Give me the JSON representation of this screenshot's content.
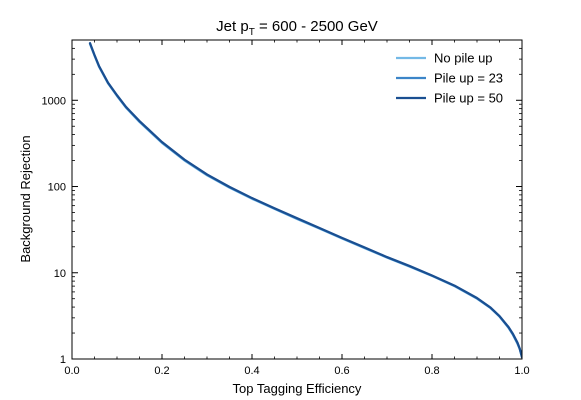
{
  "chart_data": {
    "type": "line",
    "title": {
      "prefix": "Jet p",
      "subscript": "T",
      "suffix": " = 600 - 2500 GeV"
    },
    "xlabel": "Top Tagging Efficiency",
    "ylabel": "Background Rejection",
    "xlim": [
      0.0,
      1.0
    ],
    "ylim": [
      1,
      5000
    ],
    "yscale": "log",
    "x_ticks": [
      "0.0",
      "0.2",
      "0.4",
      "0.6",
      "0.8",
      "1.0"
    ],
    "y_ticks": [
      "1",
      "10",
      "100",
      "1000"
    ],
    "grid": false,
    "legend_position": "top-right",
    "series": [
      {
        "name": "No pile up",
        "color": "#74b9e6",
        "x": [
          0.04,
          0.05,
          0.06,
          0.08,
          0.1,
          0.12,
          0.15,
          0.2,
          0.25,
          0.3,
          0.35,
          0.4,
          0.45,
          0.5,
          0.55,
          0.6,
          0.65,
          0.7,
          0.75,
          0.8,
          0.85,
          0.9,
          0.93,
          0.95,
          0.97,
          0.98,
          0.99,
          0.995,
          1.0
        ],
        "y": [
          4500,
          3300,
          2450,
          1570,
          1120,
          820,
          560,
          320,
          200,
          135,
          97,
          72,
          55,
          42,
          32.5,
          25,
          19.3,
          15,
          11.8,
          9.2,
          7,
          5,
          3.9,
          3.1,
          2.3,
          1.9,
          1.5,
          1.3,
          1.05
        ]
      },
      {
        "name": "Pile up = 23",
        "color": "#3c85c8",
        "x": [
          0.04,
          0.05,
          0.06,
          0.08,
          0.1,
          0.12,
          0.15,
          0.2,
          0.25,
          0.3,
          0.35,
          0.4,
          0.45,
          0.5,
          0.55,
          0.6,
          0.65,
          0.7,
          0.75,
          0.8,
          0.85,
          0.9,
          0.93,
          0.95,
          0.97,
          0.98,
          0.99,
          0.995,
          1.0
        ],
        "y": [
          4550,
          3330,
          2480,
          1590,
          1135,
          830,
          568,
          325,
          203,
          137,
          98,
          73,
          55.5,
          42.5,
          32.8,
          25.2,
          19.5,
          15.1,
          11.9,
          9.25,
          7.05,
          5.05,
          3.92,
          3.12,
          2.32,
          1.92,
          1.52,
          1.31,
          1.05
        ]
      },
      {
        "name": "Pile up = 50",
        "color": "#1a4f91",
        "x": [
          0.04,
          0.05,
          0.06,
          0.08,
          0.1,
          0.12,
          0.15,
          0.2,
          0.25,
          0.3,
          0.35,
          0.4,
          0.45,
          0.5,
          0.55,
          0.6,
          0.65,
          0.7,
          0.75,
          0.8,
          0.85,
          0.9,
          0.93,
          0.95,
          0.97,
          0.98,
          0.99,
          0.995,
          1.0
        ],
        "y": [
          4600,
          3350,
          2500,
          1600,
          1145,
          838,
          575,
          328,
          205,
          138,
          99,
          73.5,
          56,
          43,
          33,
          25.4,
          19.7,
          15.2,
          12,
          9.3,
          7.1,
          5.1,
          3.95,
          3.15,
          2.35,
          1.95,
          1.55,
          1.32,
          1.05
        ]
      }
    ]
  }
}
